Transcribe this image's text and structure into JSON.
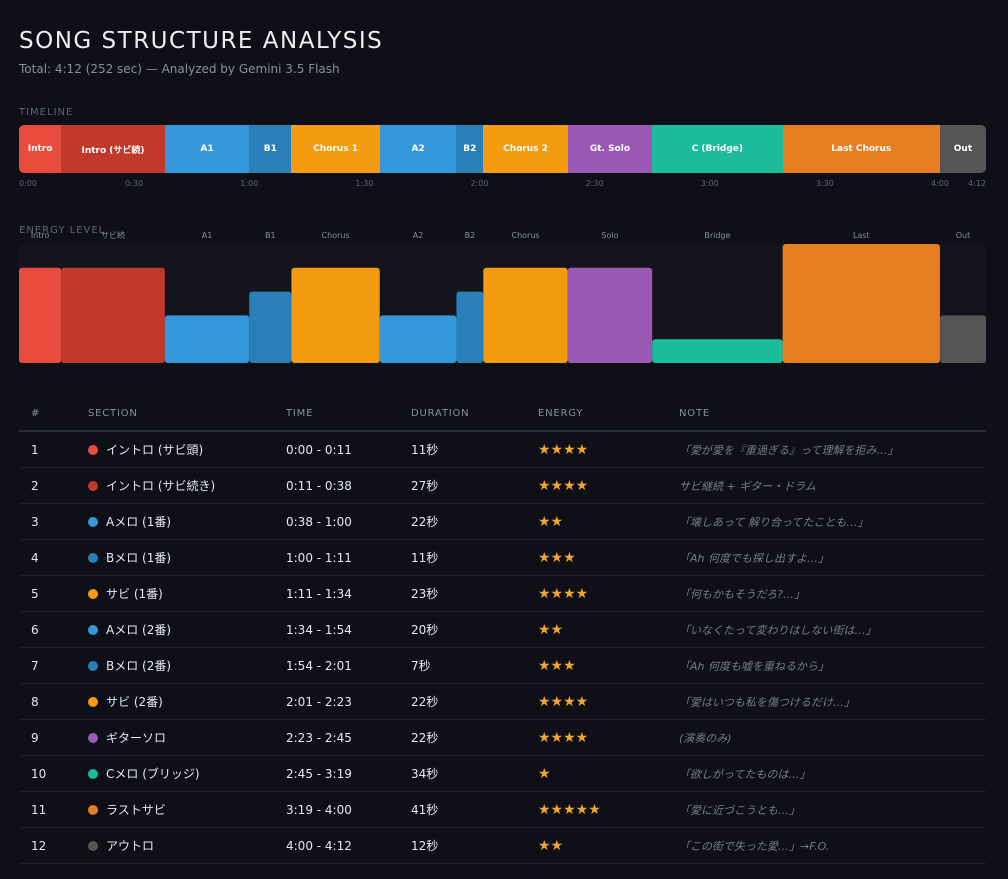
{
  "header": {
    "title": "SONG STRUCTURE ANALYSIS",
    "subtitle": "Total: 4:12 (252 sec) — Analyzed by Gemini 3.5 Flash"
  },
  "labels": {
    "timeline": "TIMELINE",
    "energy": "ENERGY LEVEL"
  },
  "chart_data": [
    {
      "type": "bar",
      "name": "timeline",
      "x_unit": "seconds",
      "xlim": [
        0,
        252
      ],
      "segments": [
        {
          "label": "Intro",
          "start": 0,
          "end": 11,
          "color": "#e74c3c"
        },
        {
          "label": "Intro (サビ続)",
          "start": 11,
          "end": 38,
          "color": "#c0392b"
        },
        {
          "label": "A1",
          "start": 38,
          "end": 60,
          "color": "#3498db"
        },
        {
          "label": "B1",
          "start": 60,
          "end": 71,
          "color": "#2980b9"
        },
        {
          "label": "Chorus 1",
          "start": 71,
          "end": 94,
          "color": "#f39c12"
        },
        {
          "label": "A2",
          "start": 94,
          "end": 114,
          "color": "#3498db"
        },
        {
          "label": "B2",
          "start": 114,
          "end": 121,
          "color": "#2980b9"
        },
        {
          "label": "Chorus 2",
          "start": 121,
          "end": 143,
          "color": "#f39c12"
        },
        {
          "label": "Gt. Solo",
          "start": 143,
          "end": 165,
          "color": "#9b59b6"
        },
        {
          "label": "C (Bridge)",
          "start": 165,
          "end": 199,
          "color": "#1abc9c"
        },
        {
          "label": "Last Chorus",
          "start": 199,
          "end": 240,
          "color": "#e67e22"
        },
        {
          "label": "Out",
          "start": 240,
          "end": 252,
          "color": "#555555"
        }
      ],
      "ticks": [
        {
          "value": 0,
          "label": "0:00"
        },
        {
          "value": 30,
          "label": "0:30"
        },
        {
          "value": 60,
          "label": "1:00"
        },
        {
          "value": 90,
          "label": "1:30"
        },
        {
          "value": 120,
          "label": "2:00"
        },
        {
          "value": 150,
          "label": "2:30"
        },
        {
          "value": 180,
          "label": "3:00"
        },
        {
          "value": 210,
          "label": "3:30"
        },
        {
          "value": 240,
          "label": "4:00"
        },
        {
          "value": 252,
          "label": "4:12"
        }
      ]
    },
    {
      "type": "bar",
      "name": "energy",
      "ylim": [
        0,
        5
      ],
      "bars": [
        {
          "label": "Intro",
          "start": 0,
          "end": 11,
          "value": 4,
          "color": "#e74c3c"
        },
        {
          "label": "サビ続",
          "start": 11,
          "end": 38,
          "value": 4,
          "color": "#c0392b"
        },
        {
          "label": "A1",
          "start": 38,
          "end": 60,
          "value": 2,
          "color": "#3498db"
        },
        {
          "label": "B1",
          "start": 60,
          "end": 71,
          "value": 3,
          "color": "#2980b9"
        },
        {
          "label": "Chorus",
          "start": 71,
          "end": 94,
          "value": 4,
          "color": "#f39c12"
        },
        {
          "label": "A2",
          "start": 94,
          "end": 114,
          "value": 2,
          "color": "#3498db"
        },
        {
          "label": "B2",
          "start": 114,
          "end": 121,
          "value": 3,
          "color": "#2980b9"
        },
        {
          "label": "Chorus",
          "start": 121,
          "end": 143,
          "value": 4,
          "color": "#f39c12"
        },
        {
          "label": "Solo",
          "start": 143,
          "end": 165,
          "value": 4,
          "color": "#9b59b6"
        },
        {
          "label": "Bridge",
          "start": 165,
          "end": 199,
          "value": 1,
          "color": "#1abc9c"
        },
        {
          "label": "Last",
          "start": 199,
          "end": 240,
          "value": 5,
          "color": "#e67e22"
        },
        {
          "label": "Out",
          "start": 240,
          "end": 252,
          "value": 2,
          "color": "#555555"
        }
      ]
    }
  ],
  "table": {
    "headers": {
      "num": "#",
      "section": "SECTION",
      "time": "TIME",
      "duration": "DURATION",
      "energy": "ENERGY",
      "note": "NOTE"
    },
    "rows": [
      {
        "num": "1",
        "section": "イントロ (サビ頭)",
        "color": "#e74c3c",
        "time": "0:00 - 0:11",
        "duration": "11秒",
        "stars": "★★★★",
        "energy": 4,
        "note": "「愛が愛を『重過ぎる』って理解を拒み…」"
      },
      {
        "num": "2",
        "section": "イントロ (サビ続き)",
        "color": "#c0392b",
        "time": "0:11 - 0:38",
        "duration": "27秒",
        "stars": "★★★★",
        "energy": 4,
        "note": "サビ継続 + ギター・ドラム"
      },
      {
        "num": "3",
        "section": "Aメロ (1番)",
        "color": "#3498db",
        "time": "0:38 - 1:00",
        "duration": "22秒",
        "stars": "★★",
        "energy": 2,
        "note": "「壊しあって 解り合ってたことも…」"
      },
      {
        "num": "4",
        "section": "Bメロ (1番)",
        "color": "#2980b9",
        "time": "1:00 - 1:11",
        "duration": "11秒",
        "stars": "★★★",
        "energy": 3,
        "note": "「Ah 何度でも探し出すよ…」"
      },
      {
        "num": "5",
        "section": "サビ (1番)",
        "color": "#f39c12",
        "time": "1:11 - 1:34",
        "duration": "23秒",
        "stars": "★★★★",
        "energy": 4,
        "note": "「何もかもそうだろ?…」"
      },
      {
        "num": "6",
        "section": "Aメロ (2番)",
        "color": "#3498db",
        "time": "1:34 - 1:54",
        "duration": "20秒",
        "stars": "★★",
        "energy": 2,
        "note": "「いなくたって変わりはしない街は…」"
      },
      {
        "num": "7",
        "section": "Bメロ (2番)",
        "color": "#2980b9",
        "time": "1:54 - 2:01",
        "duration": "7秒",
        "stars": "★★★",
        "energy": 3,
        "note": "「Ah 何度も嘘を重ねるから」"
      },
      {
        "num": "8",
        "section": "サビ (2番)",
        "color": "#f39c12",
        "time": "2:01 - 2:23",
        "duration": "22秒",
        "stars": "★★★★",
        "energy": 4,
        "note": "「愛はいつも私を傷つけるだけ…」"
      },
      {
        "num": "9",
        "section": "ギターソロ",
        "color": "#9b59b6",
        "time": "2:23 - 2:45",
        "duration": "22秒",
        "stars": "★★★★",
        "energy": 4,
        "note": "(演奏のみ)"
      },
      {
        "num": "10",
        "section": "Cメロ (ブリッジ)",
        "color": "#1abc9c",
        "time": "2:45 - 3:19",
        "duration": "34秒",
        "stars": "★",
        "energy": 1,
        "note": "「欲しがってたものは…」"
      },
      {
        "num": "11",
        "section": "ラストサビ",
        "color": "#e67e22",
        "time": "3:19 - 4:00",
        "duration": "41秒",
        "stars": "★★★★★",
        "energy": 5,
        "note": "「愛に近づこうとも…」"
      },
      {
        "num": "12",
        "section": "アウトロ",
        "color": "#555555",
        "time": "4:00 - 4:12",
        "duration": "12秒",
        "stars": "★★",
        "energy": 2,
        "note": "「この街で失った愛…」→F.O."
      }
    ]
  }
}
